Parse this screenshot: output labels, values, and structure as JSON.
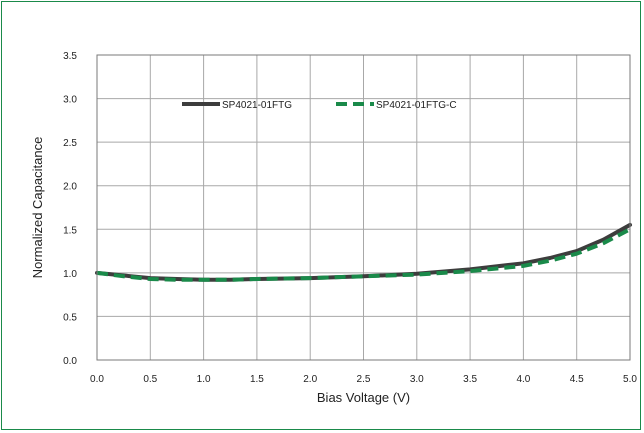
{
  "chart_data": {
    "type": "line",
    "title": "",
    "xlabel": "Bias Voltage (V)",
    "ylabel": "Normalized Capacitance",
    "xlim": [
      0,
      5
    ],
    "ylim": [
      0,
      3.5
    ],
    "x_ticks": [
      "0.0",
      "0.5",
      "1.0",
      "1.5",
      "2.0",
      "2.5",
      "3.0",
      "3.5",
      "4.0",
      "4.5",
      "5.0"
    ],
    "y_ticks": [
      "0.0",
      "0.5",
      "1.0",
      "1.5",
      "2.0",
      "2.5",
      "3.0",
      "3.5"
    ],
    "grid": true,
    "legend_position": "top-center",
    "series": [
      {
        "name": "SP4021-01FTG",
        "color": "#3d3d3d",
        "style": "solid",
        "x": [
          0.0,
          0.25,
          0.5,
          0.75,
          1.0,
          1.25,
          1.5,
          2.0,
          2.5,
          3.0,
          3.5,
          4.0,
          4.25,
          4.5,
          4.75,
          5.0
        ],
        "y": [
          1.0,
          0.97,
          0.94,
          0.93,
          0.92,
          0.92,
          0.93,
          0.94,
          0.96,
          0.99,
          1.04,
          1.11,
          1.17,
          1.25,
          1.38,
          1.55
        ]
      },
      {
        "name": "SP4021-01FTG-C",
        "color": "#1a8a4a",
        "style": "dashed",
        "x": [
          0.0,
          0.25,
          0.5,
          0.75,
          1.0,
          1.25,
          1.5,
          2.0,
          2.5,
          3.0,
          3.5,
          4.0,
          4.25,
          4.5,
          4.75,
          5.0
        ],
        "y": [
          1.0,
          0.96,
          0.93,
          0.92,
          0.92,
          0.92,
          0.93,
          0.94,
          0.96,
          0.98,
          1.02,
          1.08,
          1.14,
          1.22,
          1.34,
          1.5
        ]
      }
    ]
  }
}
